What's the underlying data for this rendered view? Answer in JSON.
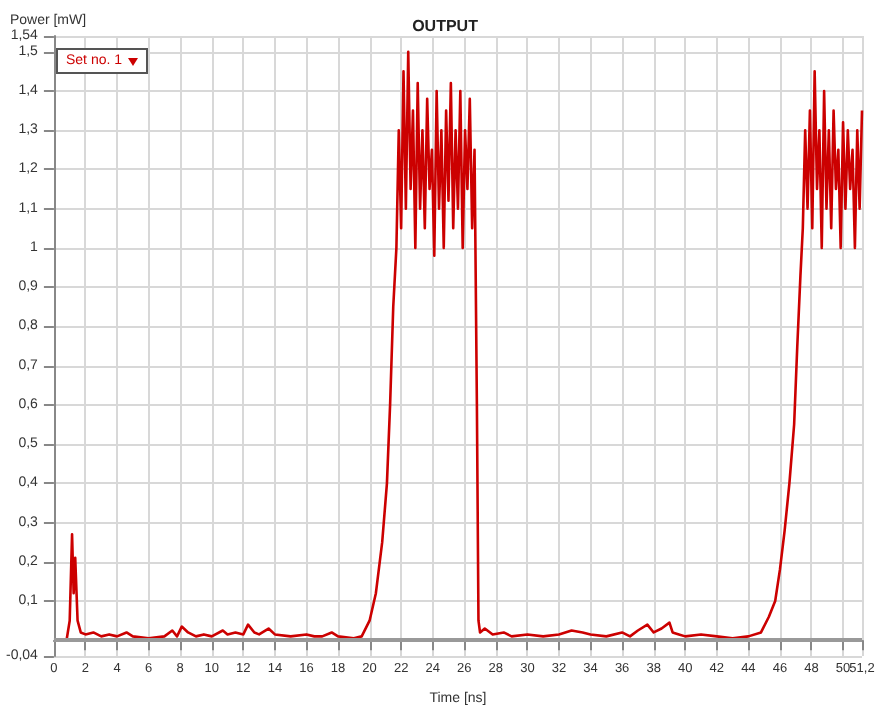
{
  "chart_data": {
    "type": "line",
    "title": "OUTPUT",
    "xlabel": "Time [ns]",
    "ylabel": "Power [mW]",
    "xlim": [
      0,
      51.2
    ],
    "xticks": [
      0,
      2,
      4,
      6,
      8,
      10,
      12,
      14,
      16,
      18,
      20,
      22,
      24,
      26,
      28,
      30,
      32,
      34,
      36,
      38,
      40,
      42,
      44,
      46,
      48,
      50,
      {
        "value": 51.2,
        "label": "51,2"
      }
    ],
    "ylim": [
      -0.04,
      1.54
    ],
    "yticks": [
      {
        "value": -0.04,
        "label": "-0,04"
      },
      {
        "value": 0.1,
        "label": "0,1"
      },
      {
        "value": 0.2,
        "label": "0,2"
      },
      {
        "value": 0.3,
        "label": "0,3"
      },
      {
        "value": 0.4,
        "label": "0,4"
      },
      {
        "value": 0.5,
        "label": "0,5"
      },
      {
        "value": 0.6,
        "label": "0,6"
      },
      {
        "value": 0.7,
        "label": "0,7"
      },
      {
        "value": 0.8,
        "label": "0,8"
      },
      {
        "value": 0.9,
        "label": "0,9"
      },
      1,
      {
        "value": 1.1,
        "label": "1,1"
      },
      {
        "value": 1.2,
        "label": "1,2"
      },
      {
        "value": 1.3,
        "label": "1,3"
      },
      {
        "value": 1.4,
        "label": "1,4"
      },
      {
        "value": 1.5,
        "label": "1,5"
      },
      {
        "value": 1.54,
        "label": "1,54"
      }
    ],
    "grid": true,
    "legend": "top left",
    "marker": "none",
    "line_style": "solid",
    "ref_lines": [
      {
        "axis": "y",
        "value": 0,
        "color": "#999999"
      }
    ],
    "series": [
      {
        "name": "Set no. 1",
        "color": "#cc0000",
        "x": [
          0.8,
          1.0,
          1.15,
          1.25,
          1.35,
          1.5,
          1.7,
          2,
          2.5,
          3,
          3.5,
          4,
          4.6,
          5,
          6,
          7,
          7.5,
          7.8,
          8.1,
          8.5,
          9,
          9.5,
          10,
          10.7,
          11,
          11.5,
          12,
          12.3,
          12.7,
          13,
          13.6,
          14,
          15,
          16,
          16.5,
          17,
          17.6,
          18,
          19,
          19.5,
          20,
          20.4,
          20.8,
          21.1,
          21.3,
          21.5,
          21.7,
          21.85,
          22.0,
          22.15,
          22.3,
          22.45,
          22.6,
          22.75,
          22.9,
          23.05,
          23.2,
          23.35,
          23.5,
          23.65,
          23.8,
          23.95,
          24.1,
          24.25,
          24.4,
          24.55,
          24.7,
          24.85,
          25.0,
          25.15,
          25.3,
          25.45,
          25.6,
          25.75,
          25.9,
          26.05,
          26.2,
          26.35,
          26.5,
          26.65,
          26.8,
          26.9,
          27.0,
          27.3,
          27.8,
          28.5,
          29,
          30,
          31,
          32,
          32.8,
          33.5,
          34,
          35,
          36,
          36.5,
          37,
          37.6,
          38,
          38.5,
          39,
          39.2,
          39.6,
          40,
          41,
          42,
          43,
          44,
          44.8,
          45.3,
          45.7,
          46.0,
          46.3,
          46.6,
          46.9,
          47.1,
          47.3,
          47.45,
          47.6,
          47.75,
          47.9,
          48.05,
          48.2,
          48.35,
          48.5,
          48.65,
          48.8,
          48.95,
          49.1,
          49.25,
          49.4,
          49.55,
          49.7,
          49.85,
          50.0,
          50.15,
          50.3,
          50.45,
          50.6,
          50.75,
          50.9,
          51.05,
          51.2
        ],
        "values": [
          0,
          0.05,
          0.27,
          0.12,
          0.21,
          0.05,
          0.02,
          0.015,
          0.02,
          0.01,
          0.015,
          0.01,
          0.02,
          0.01,
          0.005,
          0.01,
          0.025,
          0.01,
          0.035,
          0.02,
          0.01,
          0.015,
          0.01,
          0.025,
          0.015,
          0.02,
          0.015,
          0.04,
          0.02,
          0.015,
          0.03,
          0.015,
          0.01,
          0.015,
          0.01,
          0.01,
          0.02,
          0.01,
          0.005,
          0.01,
          0.05,
          0.12,
          0.25,
          0.4,
          0.6,
          0.85,
          1.0,
          1.3,
          1.05,
          1.45,
          1.1,
          1.5,
          1.15,
          1.35,
          1.0,
          1.42,
          1.1,
          1.3,
          1.05,
          1.38,
          1.15,
          1.25,
          0.98,
          1.4,
          1.1,
          1.3,
          1.0,
          1.35,
          1.12,
          1.42,
          1.05,
          1.3,
          1.1,
          1.4,
          1.0,
          1.3,
          1.15,
          1.38,
          1.05,
          1.25,
          0.6,
          0.05,
          0.02,
          0.03,
          0.015,
          0.02,
          0.01,
          0.015,
          0.01,
          0.015,
          0.025,
          0.02,
          0.015,
          0.01,
          0.02,
          0.01,
          0.025,
          0.04,
          0.02,
          0.03,
          0.045,
          0.02,
          0.015,
          0.01,
          0.015,
          0.01,
          0.005,
          0.01,
          0.02,
          0.06,
          0.1,
          0.18,
          0.28,
          0.4,
          0.55,
          0.75,
          0.93,
          1.05,
          1.3,
          1.1,
          1.35,
          1.05,
          1.45,
          1.15,
          1.3,
          1.0,
          1.4,
          1.1,
          1.3,
          1.05,
          1.35,
          1.15,
          1.25,
          1.0,
          1.32,
          1.1,
          1.3,
          1.15,
          1.25,
          1.0,
          1.3,
          1.1,
          1.35
        ]
      }
    ]
  }
}
